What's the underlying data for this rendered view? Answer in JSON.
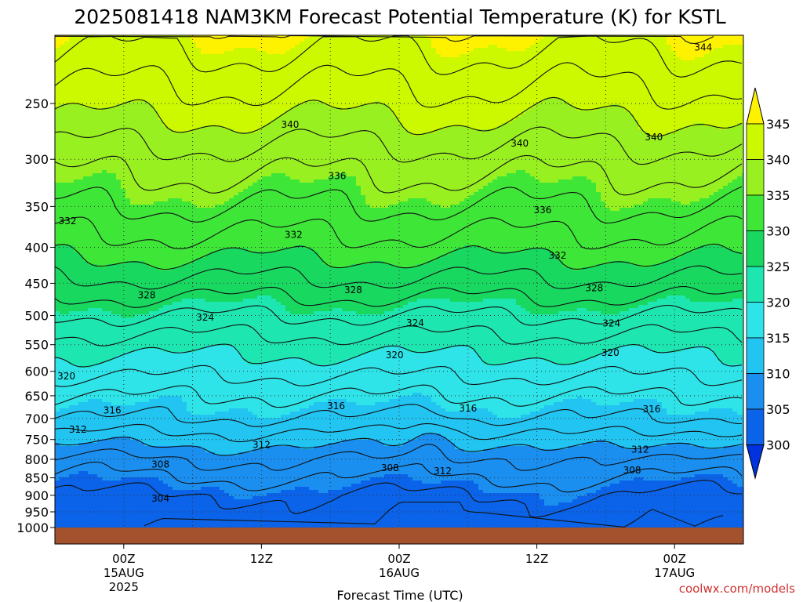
{
  "chart_data": {
    "type": "heatmap",
    "title": "2025081418 NAM3KM Forecast Potential Temperature (K) for KSTL",
    "xlabel": "Forecast Time (UTC)",
    "ylabel": "",
    "x_ticks": [
      {
        "hour": 6,
        "lines": [
          "00Z",
          "15AUG",
          "2025"
        ]
      },
      {
        "hour": 18,
        "lines": [
          "12Z"
        ]
      },
      {
        "hour": 30,
        "lines": [
          "00Z",
          "16AUG"
        ]
      },
      {
        "hour": 42,
        "lines": [
          "12Z"
        ]
      },
      {
        "hour": 54,
        "lines": [
          "00Z",
          "17AUG"
        ]
      }
    ],
    "x_range_hours": [
      0,
      60
    ],
    "y_ticks": [
      250,
      300,
      350,
      400,
      450,
      500,
      550,
      600,
      650,
      700,
      750,
      800,
      850,
      900,
      950,
      1000
    ],
    "y_range_hpa": [
      1000,
      200
    ],
    "y_scale": "log",
    "levels": [
      300,
      305,
      310,
      315,
      320,
      325,
      330,
      335,
      340,
      345
    ],
    "colors": [
      "#0033dd",
      "#0a63e8",
      "#1a8ff0",
      "#22c4f2",
      "#2ee4e8",
      "#1ee6b0",
      "#18d860",
      "#3ee638",
      "#98f020",
      "#ccf800",
      "#fff200"
    ],
    "ground_color": "#a4522e",
    "grid": true,
    "profile": [
      {
        "p": 1000,
        "theta": 302.5
      },
      {
        "p": 950,
        "theta": 303
      },
      {
        "p": 900,
        "theta": 304
      },
      {
        "p": 850,
        "theta": 306
      },
      {
        "p": 800,
        "theta": 308
      },
      {
        "p": 750,
        "theta": 311
      },
      {
        "p": 700,
        "theta": 314
      },
      {
        "p": 650,
        "theta": 316
      },
      {
        "p": 600,
        "theta": 318.5
      },
      {
        "p": 550,
        "theta": 321
      },
      {
        "p": 500,
        "theta": 324
      },
      {
        "p": 450,
        "theta": 327.5
      },
      {
        "p": 400,
        "theta": 331
      },
      {
        "p": 350,
        "theta": 334
      },
      {
        "p": 300,
        "theta": 337
      },
      {
        "p": 250,
        "theta": 341
      },
      {
        "p": 200,
        "theta": 345
      }
    ],
    "contour_labels": [
      {
        "text": "344",
        "hour": 56.5,
        "p": 208
      },
      {
        "text": "340",
        "hour": 20.5,
        "p": 268
      },
      {
        "text": "340",
        "hour": 40.5,
        "p": 285
      },
      {
        "text": "340",
        "hour": 52.2,
        "p": 279
      },
      {
        "text": "336",
        "hour": 24.6,
        "p": 317
      },
      {
        "text": "336",
        "hour": 42.5,
        "p": 354
      },
      {
        "text": "332",
        "hour": 1.1,
        "p": 367
      },
      {
        "text": "332",
        "hour": 20.8,
        "p": 384
      },
      {
        "text": "332",
        "hour": 43.8,
        "p": 411
      },
      {
        "text": "328",
        "hour": 8.0,
        "p": 468
      },
      {
        "text": "328",
        "hour": 26.0,
        "p": 460
      },
      {
        "text": "328",
        "hour": 47.0,
        "p": 457
      },
      {
        "text": "324",
        "hour": 13.1,
        "p": 503
      },
      {
        "text": "324",
        "hour": 31.4,
        "p": 512
      },
      {
        "text": "324",
        "hour": 48.5,
        "p": 513
      },
      {
        "text": "320",
        "hour": 1.0,
        "p": 610
      },
      {
        "text": "320",
        "hour": 29.6,
        "p": 569
      },
      {
        "text": "320",
        "hour": 48.4,
        "p": 565
      },
      {
        "text": "316",
        "hour": 5.0,
        "p": 682
      },
      {
        "text": "316",
        "hour": 24.5,
        "p": 672
      },
      {
        "text": "316",
        "hour": 36.0,
        "p": 677
      },
      {
        "text": "316",
        "hour": 52.0,
        "p": 679
      },
      {
        "text": "312",
        "hour": 2.0,
        "p": 726
      },
      {
        "text": "312",
        "hour": 18.0,
        "p": 763
      },
      {
        "text": "312",
        "hour": 33.8,
        "p": 832
      },
      {
        "text": "312",
        "hour": 51.0,
        "p": 775
      },
      {
        "text": "308",
        "hour": 9.2,
        "p": 814
      },
      {
        "text": "308",
        "hour": 29.2,
        "p": 823
      },
      {
        "text": "308",
        "hour": 50.3,
        "p": 829
      },
      {
        "text": "304",
        "hour": 9.2,
        "p": 909
      }
    ]
  },
  "credit": "coolwx.com/models"
}
